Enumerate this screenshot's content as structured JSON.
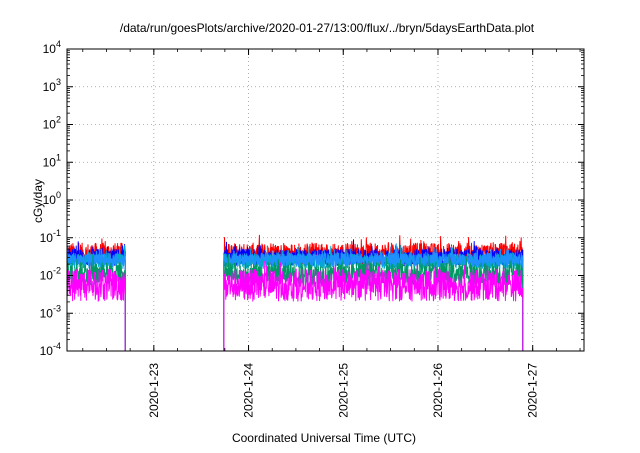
{
  "chart_data": {
    "type": "line",
    "title": "/data/run/goesPlots/archive/2020-01-27/13:00/flux/../bryn/5daysEarthData.plot",
    "xlabel": "Coordinated Universal Time (UTC)",
    "ylabel": "cGy/day",
    "y_scale": "log",
    "ylim": [
      0.0001,
      10000
    ],
    "xlim": [
      "2020-01-22 02:00",
      "2020-01-27 13:00"
    ],
    "grid": true,
    "x_ticks": [
      {
        "value": "2020-01-23 00:00",
        "label": "2020-1-23"
      },
      {
        "value": "2020-01-24 00:00",
        "label": "2020-1-24"
      },
      {
        "value": "2020-01-25 00:00",
        "label": "2020-1-25"
      },
      {
        "value": "2020-01-26 00:00",
        "label": "2020-1-26"
      },
      {
        "value": "2020-01-27 00:00",
        "label": "2020-1-27"
      }
    ],
    "y_ticks": [
      {
        "value": 0.0001,
        "base": "10",
        "exp": "-4"
      },
      {
        "value": 0.001,
        "base": "10",
        "exp": "-3"
      },
      {
        "value": 0.01,
        "base": "10",
        "exp": "-2"
      },
      {
        "value": 0.1,
        "base": "10",
        "exp": "-1"
      },
      {
        "value": 1,
        "base": "10",
        "exp": "0"
      },
      {
        "value": 10,
        "base": "10",
        "exp": "1"
      },
      {
        "value": 100,
        "base": "10",
        "exp": "2"
      },
      {
        "value": 1000,
        "base": "10",
        "exp": "3"
      },
      {
        "value": 10000,
        "base": "10",
        "exp": "4"
      }
    ],
    "segments": [
      {
        "start": "2020-01-22 02:00",
        "end": "2020-01-22 16:45",
        "drop_start": false,
        "drop_end": true
      },
      {
        "start": "2020-01-23 17:45",
        "end": "2020-01-26 21:30",
        "drop_start": true,
        "drop_end": true
      }
    ],
    "series": [
      {
        "color": "#ff0000",
        "level": 0.038,
        "spread": 0.28
      },
      {
        "color": "#0000ff",
        "level": 0.03,
        "spread": 0.22
      },
      {
        "color": "#00aacc",
        "level": 0.024,
        "spread": 0.2
      },
      {
        "color": "#1e90ff",
        "level": 0.026,
        "spread": 0.18
      },
      {
        "color": "#009966",
        "level": 0.011,
        "spread": 0.3
      },
      {
        "color": "#ff00ff",
        "level": 0.0055,
        "spread": 0.42
      }
    ]
  }
}
